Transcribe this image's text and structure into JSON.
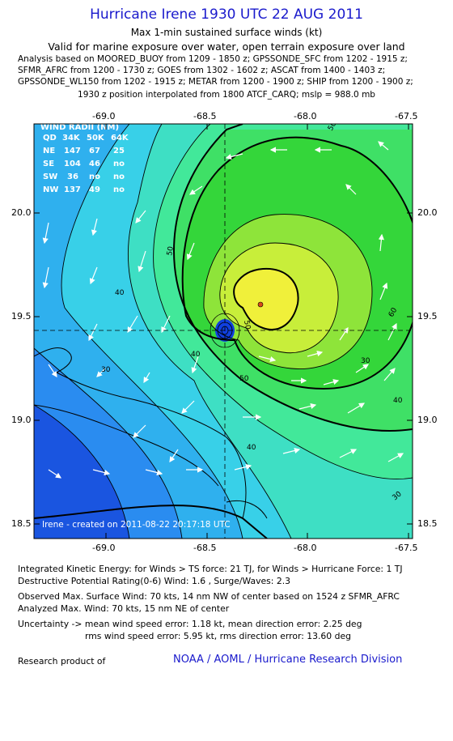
{
  "header": {
    "title": "Hurricane Irene 1930 UTC 22 AUG 2011",
    "subtitle": "Max 1-min sustained surface winds (kt)",
    "valid": "Valid for marine exposure over water, open terrain exposure over land",
    "analysis_lines": [
      "Analysis based on MOORED_BUOY from 1209 - 1850 z; GPSSONDE_SFC from 1202 - 1915 z;",
      "SFMR_AFRC from 1200 - 1730 z; GOES from 1302 - 1602 z; ASCAT from 1400 - 1403 z;",
      "GPSSONDE_WL150 from 1202 - 1915 z; METAR from 1200 - 1900 z; SHIP from 1200 - 1900 z;"
    ],
    "position_note": "1930 z position interpolated from 1800 ATCF_CARQ; mslp = 988.0 mb"
  },
  "map": {
    "lon_ticks": [
      "-69.0",
      "-68.5",
      "-68.0",
      "-67.5"
    ],
    "lat_ticks": [
      "20.0",
      "19.5",
      "19.0",
      "18.5"
    ],
    "contour_labels": [
      "50",
      "50",
      "40",
      "50",
      "30",
      "40",
      "50",
      "40",
      "60",
      "30",
      "40",
      "30"
    ],
    "credit": "Irene - created on 2011-08-22 20:17:18 UTC",
    "wind_radii": {
      "title": "WIND RADII (NM)",
      "header": [
        "QD",
        "34K",
        "50K",
        "64K"
      ],
      "rows": [
        [
          "NE",
          "147",
          "67",
          "25"
        ],
        [
          "SE",
          "104",
          "46",
          "no"
        ],
        [
          "SW",
          "36",
          "no",
          "no"
        ],
        [
          "NW",
          "137",
          "49",
          "no"
        ]
      ]
    },
    "colors": {
      "c1": "#1a55e0",
      "c2": "#2a8cf0",
      "c3": "#2fb0ee",
      "c4": "#38d0e8",
      "c5": "#3edfc4",
      "c6": "#42e89a",
      "c7": "#3fe066",
      "c8": "#34d63a",
      "c9": "#8ee43a",
      "c10": "#c8ee3a",
      "c11": "#f0f03a",
      "eye": "#1040e0"
    }
  },
  "footer": {
    "ike": "Integrated Kinetic Energy:  for Winds > TS force: 21 TJ,  for Winds > Hurricane Force: 1 TJ",
    "dpr": "Destructive Potential Rating(0-6)   Wind: 1.6 , Surge/Waves: 2.3",
    "obs_max": "Observed Max. Surface Wind: 70 kts, 14 nm NW of center based on 1524 z SFMR_AFRC",
    "analyzed_max": "Analyzed Max. Wind: 70 kts, 15 nm NE of center",
    "uncert1": "Uncertainty -> mean wind speed error: 1.18 kt,   mean direction error: 2.25 deg",
    "uncert2": "rms wind speed error: 5.95 kt,   rms direction error: 13.60 deg",
    "research": "Research product of",
    "org": "NOAA / AOML / Hurricane Research Division"
  }
}
